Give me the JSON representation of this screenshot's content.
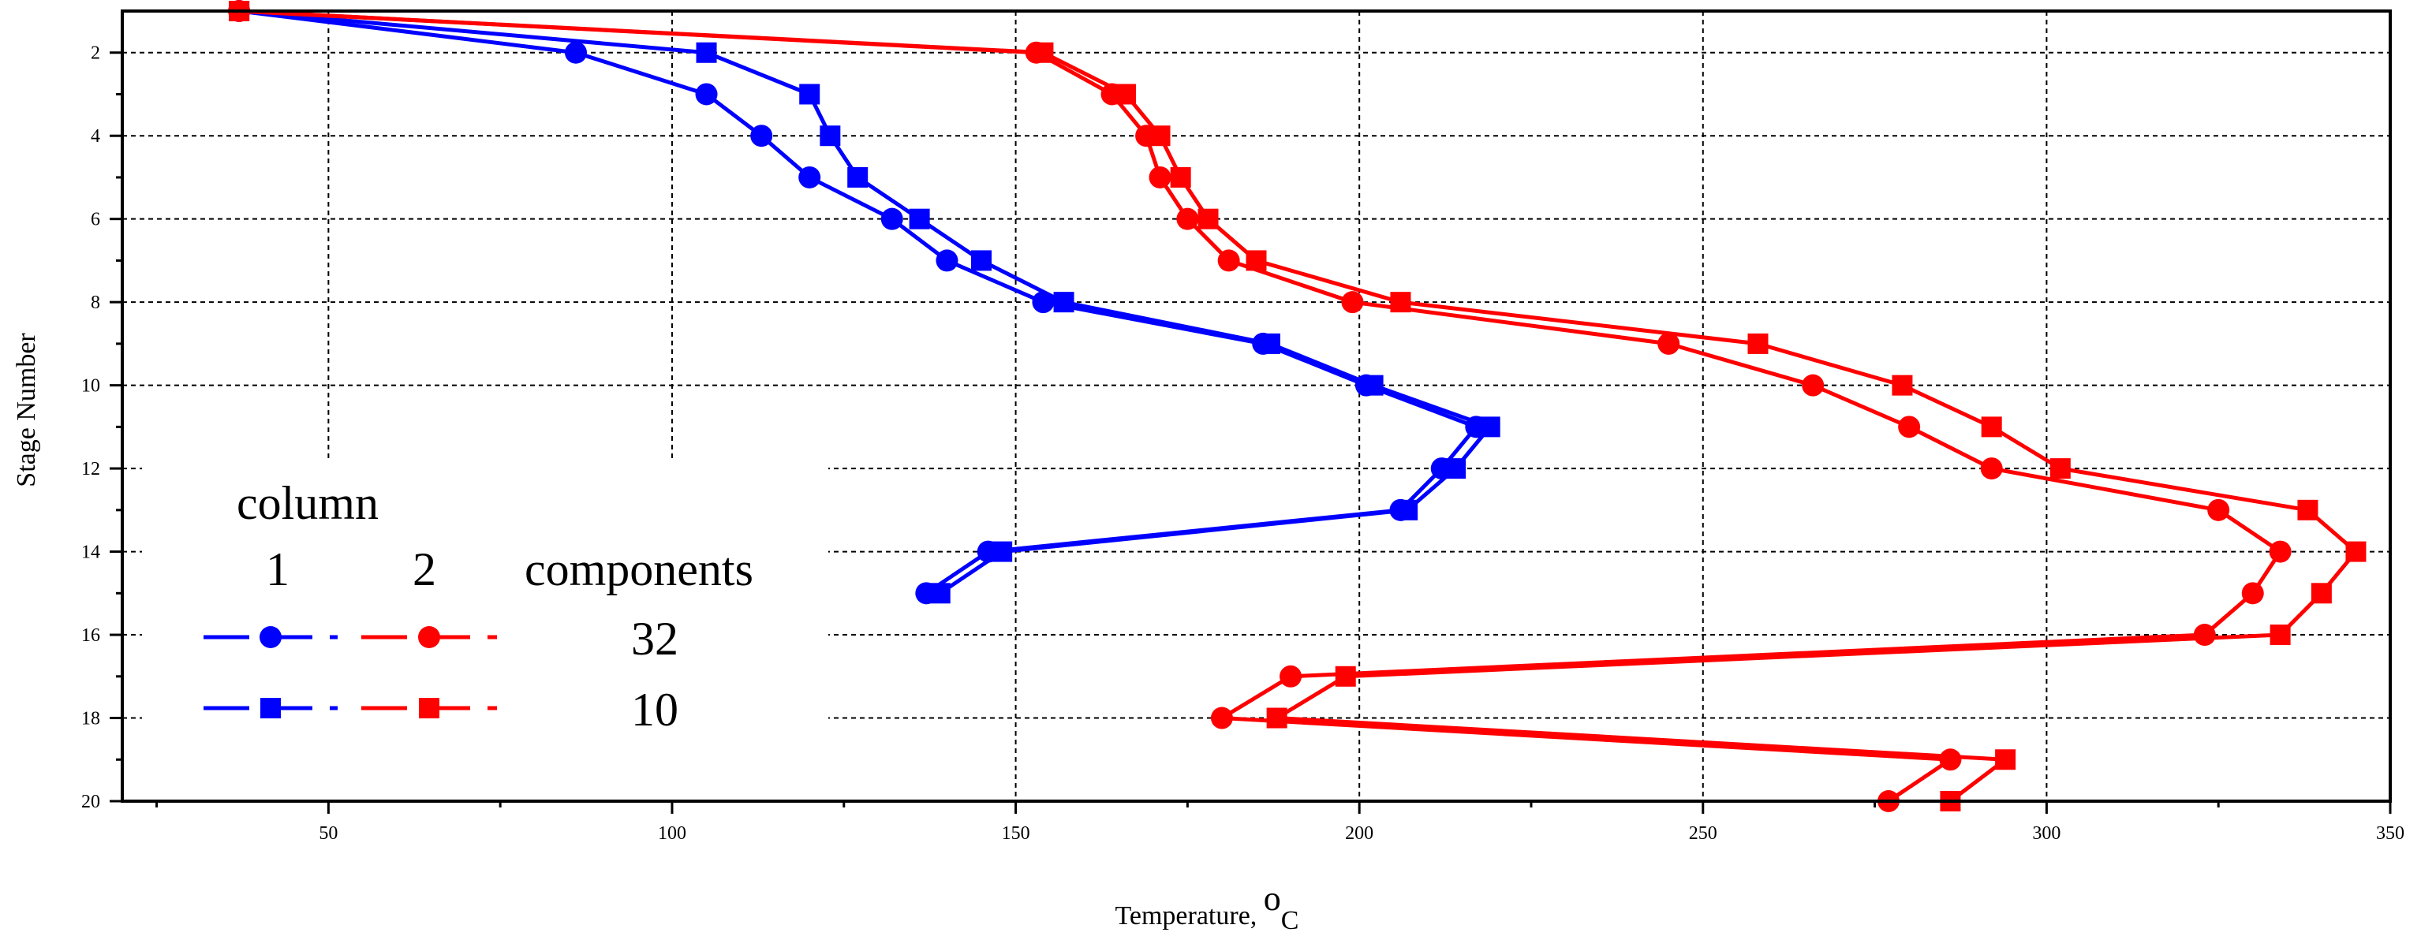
{
  "chart_data": {
    "type": "line",
    "title": "",
    "xlabel": "Temperature, ",
    "xlabel_sup": "o",
    "xlabel_sub": "C",
    "ylabel": "Stage Number",
    "xlim": [
      20,
      350
    ],
    "ylim": [
      1,
      20
    ],
    "y_inverted": true,
    "grid": true,
    "x_ticks": [
      50,
      100,
      150,
      200,
      250,
      300,
      350
    ],
    "x_tick_labels": [
      "50",
      "100",
      "150",
      "200",
      "250",
      "300",
      "350"
    ],
    "y_ticks": [
      2,
      4,
      6,
      8,
      10,
      12,
      14,
      16,
      18,
      20
    ],
    "y_tick_labels": [
      "2",
      "4",
      "6",
      "8",
      "10",
      "12",
      "14",
      "16",
      "18",
      "20"
    ],
    "legend": {
      "placement": "bottom-left",
      "title": "column",
      "col1": "1",
      "col2": "2",
      "components_header": "components",
      "row1_label": "32",
      "row2_label": "10"
    },
    "series": [
      {
        "name": "column 1, 32 components",
        "color": "#0000ff",
        "marker": "circle",
        "stages": [
          1,
          2,
          3,
          4,
          5,
          6,
          7,
          8,
          9,
          10,
          11,
          12,
          13,
          14,
          15
        ],
        "temperatures": [
          37,
          86,
          105,
          113,
          120,
          132,
          140,
          154,
          186,
          201,
          217,
          212,
          206,
          146,
          137
        ]
      },
      {
        "name": "column 1, 10 components",
        "color": "#0000ff",
        "marker": "square",
        "stages": [
          1,
          2,
          3,
          4,
          5,
          6,
          7,
          8,
          9,
          10,
          11,
          12,
          13,
          14,
          15
        ],
        "temperatures": [
          37,
          105,
          120,
          123,
          127,
          136,
          145,
          157,
          187,
          202,
          219,
          214,
          207,
          148,
          139
        ]
      },
      {
        "name": "column 2, 32 components",
        "color": "#ff0000",
        "marker": "circle",
        "stages": [
          1,
          2,
          3,
          4,
          5,
          6,
          7,
          8,
          9,
          10,
          11,
          12,
          13,
          14,
          15,
          16,
          17,
          18,
          19,
          20
        ],
        "temperatures": [
          37,
          153,
          164,
          169,
          171,
          175,
          181,
          199,
          245,
          266,
          280,
          292,
          325,
          334,
          330,
          323,
          190,
          180,
          286,
          277
        ]
      },
      {
        "name": "column 2, 10 components",
        "color": "#ff0000",
        "marker": "square",
        "stages": [
          1,
          2,
          3,
          4,
          5,
          6,
          7,
          8,
          9,
          10,
          11,
          12,
          13,
          14,
          15,
          16,
          17,
          18,
          19,
          20
        ],
        "temperatures": [
          37,
          154,
          166,
          171,
          174,
          178,
          185,
          206,
          258,
          279,
          292,
          302,
          338,
          345,
          340,
          334,
          198,
          188,
          294,
          286
        ]
      }
    ]
  }
}
